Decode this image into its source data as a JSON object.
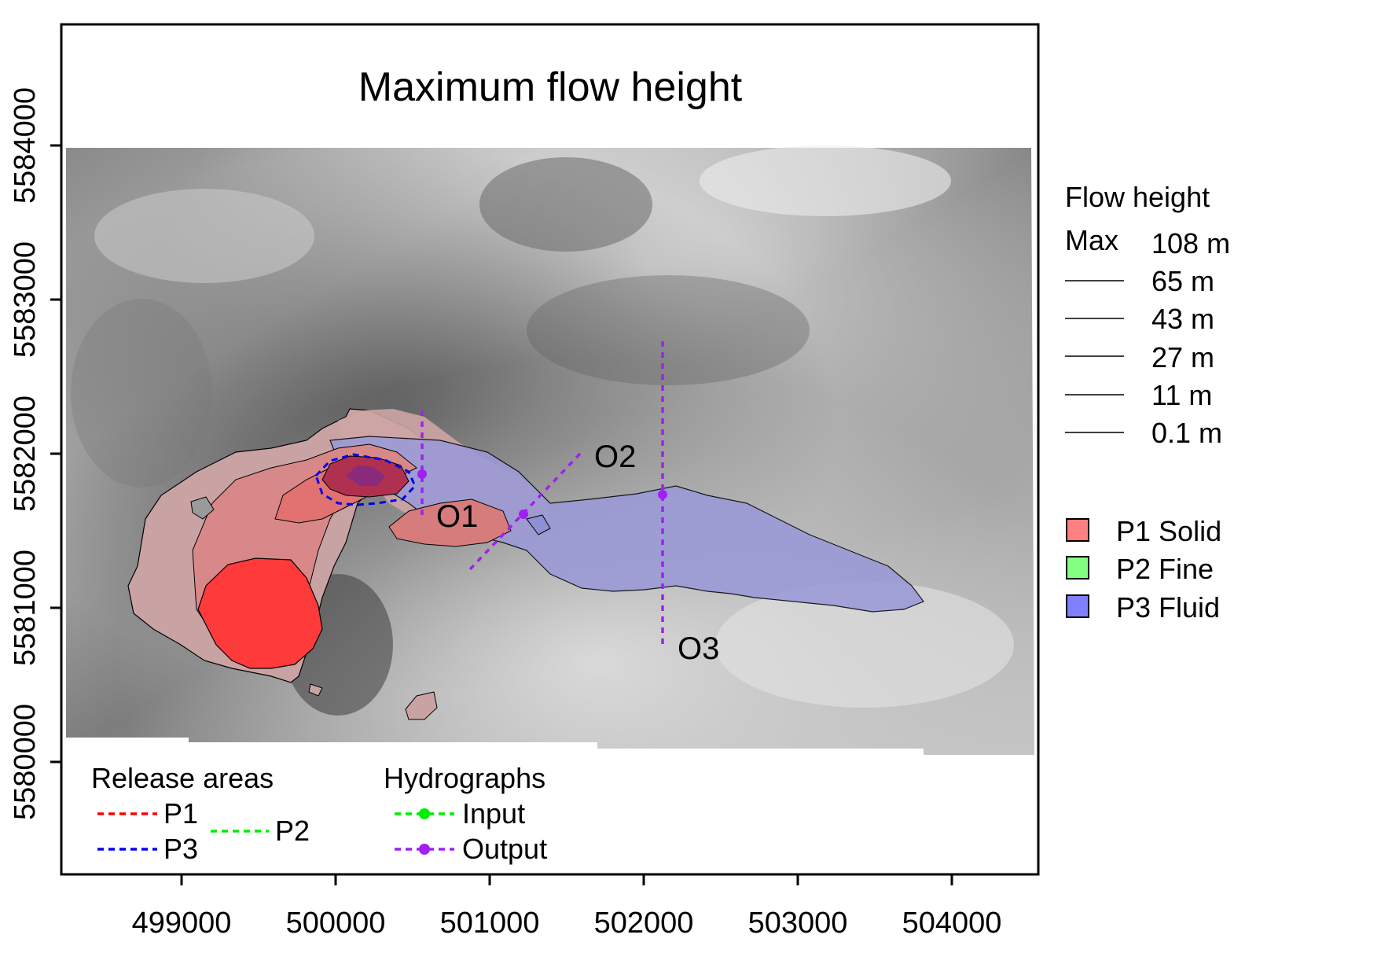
{
  "title": "Maximum flow height",
  "axes": {
    "x_ticks": [
      "499000",
      "500000",
      "501000",
      "502000",
      "503000",
      "504000"
    ],
    "y_ticks": [
      "5580000",
      "5581000",
      "5582000",
      "5583000",
      "5584000"
    ]
  },
  "colors": {
    "p1_solid": "#ff8080",
    "p2_fine": "#80ff80",
    "p3_fluid": "#8080ff",
    "release_p1": "#ff0000",
    "release_p2": "#00ee00",
    "release_p3": "#0000ee",
    "hydro_input": "#00ee00",
    "hydro_output": "#a020f0"
  },
  "flow_height_legend": {
    "title": "Flow height",
    "max_label": "Max",
    "levels": [
      "108 m",
      "65 m",
      "43 m",
      "27 m",
      "11 m",
      "0.1 m"
    ]
  },
  "fractions_legend": {
    "items": [
      {
        "label": "P1 Solid",
        "color": "#ff8080"
      },
      {
        "label": "P2 Fine",
        "color": "#80ff80"
      },
      {
        "label": "P3 Fluid",
        "color": "#8080ff"
      }
    ]
  },
  "release_legend": {
    "title": "Release areas",
    "p1": "P1",
    "p2": "P2",
    "p3": "P3"
  },
  "hydrograph_legend": {
    "title": "Hydrographs",
    "input": "Input",
    "output": "Output"
  },
  "hydrograph_labels": [
    "O1",
    "O2",
    "O3"
  ]
}
